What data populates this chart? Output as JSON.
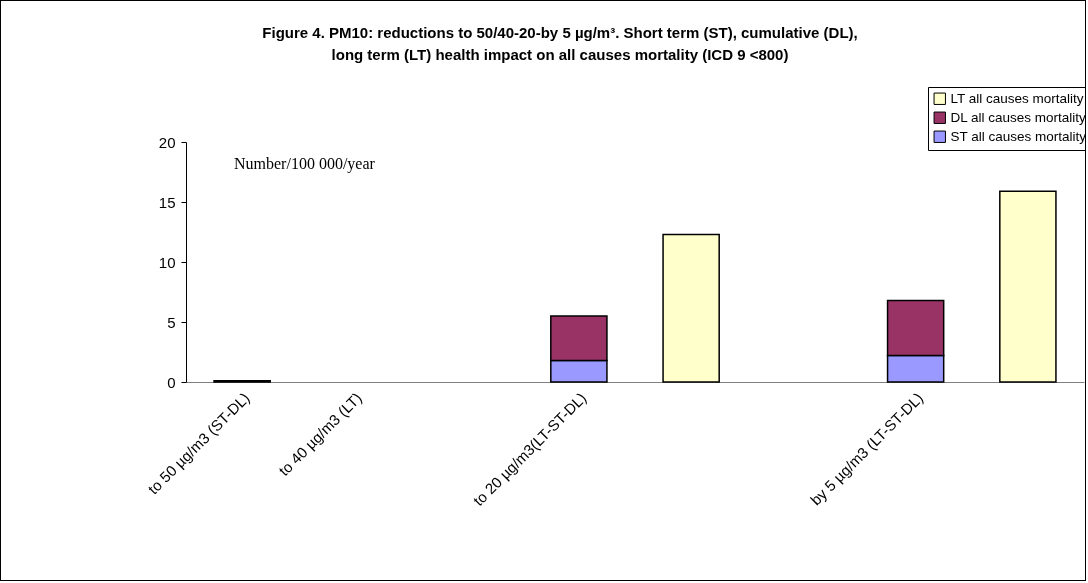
{
  "chart_data": {
    "type": "bar",
    "title": [
      "Figure 4. PM10: reductions to 50/40-20-by 5 µg/m³.  Short term (ST), cumulative (DL),",
      "long term (LT) health impact on all causes mortality (ICD 9 <800)"
    ],
    "categories": [
      "to 50 µg/m3  (ST-DL)",
      "to 40 µg/m3  (LT)",
      null,
      "to 20 µg/m3(LT-ST-DL)",
      null,
      null,
      "by 5 µg/m3 (LT-ST-DL)",
      null
    ],
    "series": [
      {
        "name": "ST all causes mortality",
        "color": "#9999ff",
        "values": [
          null,
          null,
          null,
          1.8,
          null,
          null,
          2.2,
          null
        ]
      },
      {
        "name": "DL all causes mortality",
        "color": "#993366",
        "values": [
          0.1,
          null,
          null,
          3.7,
          null,
          null,
          4.6,
          null
        ]
      },
      {
        "name": "LT all causes mortality",
        "color": "#ffffcc",
        "values": [
          null,
          null,
          null,
          null,
          12.3,
          null,
          null,
          15.9
        ]
      }
    ],
    "stacked": true,
    "ylim": [
      0,
      20
    ],
    "yticks": [
      0,
      5,
      10,
      15,
      20
    ],
    "legend": "top right",
    "annotations": [
      "Number/100 000/year"
    ]
  }
}
